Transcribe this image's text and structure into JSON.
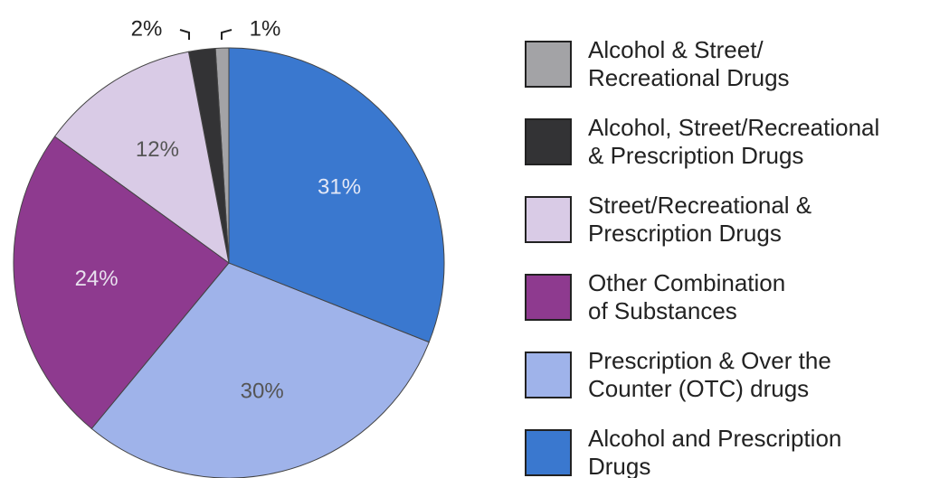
{
  "chart_data": {
    "type": "pie",
    "categories": [
      "Alcohol & Street/\nRecreational Drugs",
      "Alcohol, Street/Recreational\n& Prescription Drugs",
      "Street/Recreational &\nPrescription Drugs",
      "Other Combination\nof Substances",
      "Prescription & Over the\nCounter (OTC) drugs",
      "Alcohol and Prescription\nDrugs"
    ],
    "values": [
      1,
      2,
      12,
      24,
      30,
      31
    ],
    "value_labels": [
      "1%",
      "2%",
      "12%",
      "24%",
      "30%",
      "31%"
    ],
    "colors": [
      "#a3a3a6",
      "#333335",
      "#d9cbe6",
      "#8e3a8f",
      "#9fb3ea",
      "#3a78cf"
    ],
    "label_colors": [
      "#222222",
      "#222222",
      "#555555",
      "#e8e0ee",
      "#555555",
      "#e4e8f6"
    ],
    "legend": "right"
  }
}
